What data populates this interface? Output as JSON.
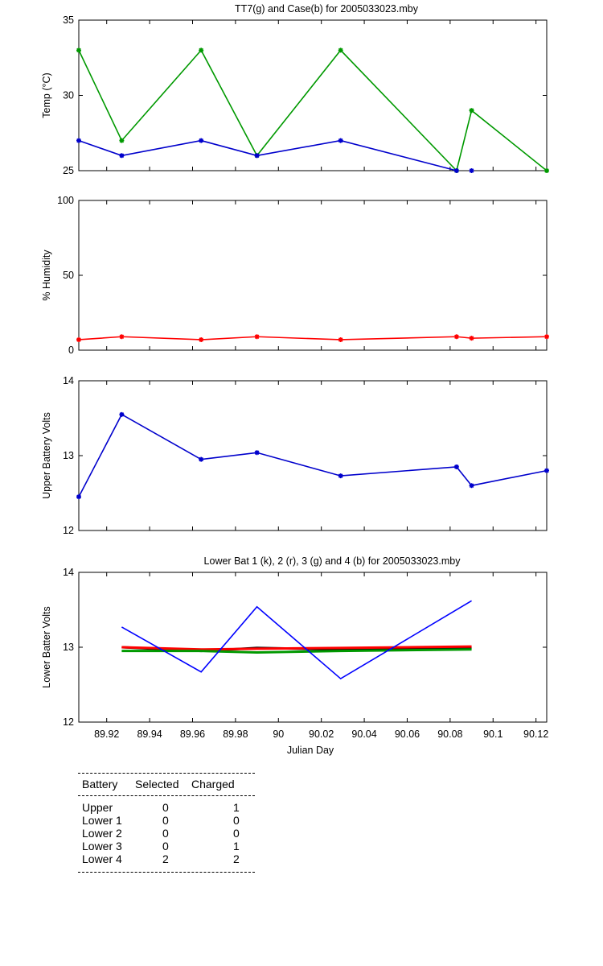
{
  "chart_data": [
    {
      "type": "line",
      "title": "TT7(g) and Case(b) for 2005033023.mby",
      "ylabel": "Temp  (°C)",
      "xlabel": "",
      "ylim": [
        25,
        35
      ],
      "xlim": [
        89.907,
        90.125
      ],
      "yticks": [
        25,
        30,
        35
      ],
      "series": [
        {
          "color": "#009900",
          "x": [
            89.907,
            89.927,
            89.964,
            89.99,
            90.029,
            90.083,
            90.09,
            90.125
          ],
          "y": [
            33,
            27,
            33,
            26,
            33,
            25,
            29,
            25
          ]
        },
        {
          "color": "#0000cc",
          "x": [
            89.907,
            89.927,
            89.964,
            89.99,
            90.029,
            90.083,
            90.09
          ],
          "y": [
            27,
            26,
            27,
            26,
            27,
            25,
            25
          ],
          "break_after": 5
        }
      ]
    },
    {
      "type": "line",
      "title": "",
      "ylabel": "% Humidity",
      "xlabel": "",
      "ylim": [
        0,
        100
      ],
      "xlim": [
        89.907,
        90.125
      ],
      "yticks": [
        0,
        50,
        100
      ],
      "series": [
        {
          "color": "#ff0000",
          "x": [
            89.907,
            89.927,
            89.964,
            89.99,
            90.029,
            90.083,
            90.09,
            90.125
          ],
          "y": [
            7,
            9,
            7,
            9,
            7,
            9,
            8,
            9
          ]
        }
      ]
    },
    {
      "type": "line",
      "title": "",
      "ylabel": "Upper Battery Volts",
      "xlabel": "",
      "ylim": [
        12,
        14
      ],
      "xlim": [
        89.907,
        90.125
      ],
      "yticks": [
        12,
        13,
        14
      ],
      "series": [
        {
          "color": "#0000cc",
          "x": [
            89.907,
            89.927,
            89.964,
            89.99,
            90.029,
            90.083,
            90.09,
            90.125
          ],
          "y": [
            12.45,
            13.55,
            12.95,
            13.04,
            12.73,
            12.85,
            12.6,
            12.8
          ]
        }
      ]
    },
    {
      "type": "line",
      "title": "Lower Bat 1 (k), 2 (r), 3 (g) and 4 (b) for 2005033023.mby",
      "ylabel": "Lower Batter Volts",
      "xlabel": "Julian Day",
      "ylim": [
        12,
        14
      ],
      "xlim": [
        89.907,
        90.125
      ],
      "yticks": [
        12,
        13,
        14
      ],
      "xticks": [
        89.92,
        89.94,
        89.96,
        89.98,
        90,
        90.02,
        90.04,
        90.06,
        90.08,
        90.1,
        90.12
      ],
      "xticklabels": [
        "89.92",
        "89.94",
        "89.96",
        "89.98",
        "90",
        "90.02",
        "90.04",
        "90.06",
        "90.08",
        "90.1",
        "90.12"
      ],
      "series": [
        {
          "color": "#000000",
          "markers": false,
          "x": [
            89.927,
            89.964,
            89.99,
            90.029,
            90.09
          ],
          "y": [
            13.0,
            12.95,
            12.99,
            12.97,
            12.99
          ]
        },
        {
          "color": "#ff0000",
          "markers": false,
          "x": [
            89.927,
            89.964,
            89.99,
            90.029,
            90.09
          ],
          "y": [
            13.0,
            12.97,
            12.98,
            12.99,
            13.01
          ]
        },
        {
          "color": "#009900",
          "markers": false,
          "x": [
            89.927,
            89.964,
            89.99,
            90.029,
            90.09
          ],
          "y": [
            12.95,
            12.95,
            12.93,
            12.95,
            12.97
          ]
        },
        {
          "color": "#0000ff",
          "markers": false,
          "x": [
            89.927,
            89.964,
            89.99,
            90.029,
            90.09
          ],
          "y": [
            13.27,
            12.67,
            13.54,
            12.58,
            13.62
          ]
        }
      ]
    }
  ],
  "battery_table": {
    "headers": [
      "Battery",
      "Selected",
      "Charged"
    ],
    "rows": [
      [
        "Upper",
        "0",
        "1"
      ],
      [
        "Lower 1",
        "0",
        "0"
      ],
      [
        "Lower 2",
        "0",
        "0"
      ],
      [
        "Lower 3",
        "0",
        "1"
      ],
      [
        "Lower 4",
        "2",
        "2"
      ]
    ]
  }
}
